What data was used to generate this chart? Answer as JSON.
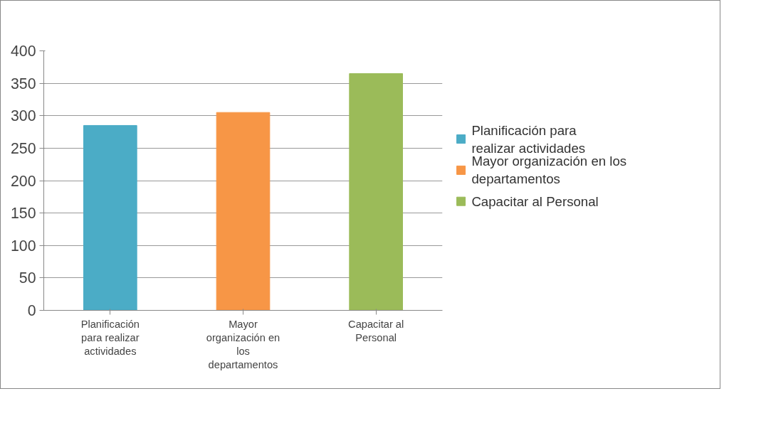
{
  "chart_data": {
    "type": "bar",
    "categories": [
      "Planificación para realizar actividades",
      "Mayor organización en los departamentos",
      "Capacitar al Personal"
    ],
    "series": [
      {
        "name": "Planificación  para realizar actividades",
        "color": "#4bacc6",
        "values": [
          285,
          null,
          null
        ]
      },
      {
        "name": "Mayor organización en los departamentos",
        "color": "#f79646",
        "values": [
          null,
          305,
          null
        ]
      },
      {
        "name": "Capacitar al Personal",
        "color": "#9bbb59",
        "values": [
          null,
          null,
          365
        ]
      }
    ],
    "ylim": [
      0,
      400
    ],
    "yticks": [
      0,
      50,
      100,
      150,
      200,
      250,
      300,
      350,
      400
    ],
    "grid": "y",
    "legend": "right"
  }
}
